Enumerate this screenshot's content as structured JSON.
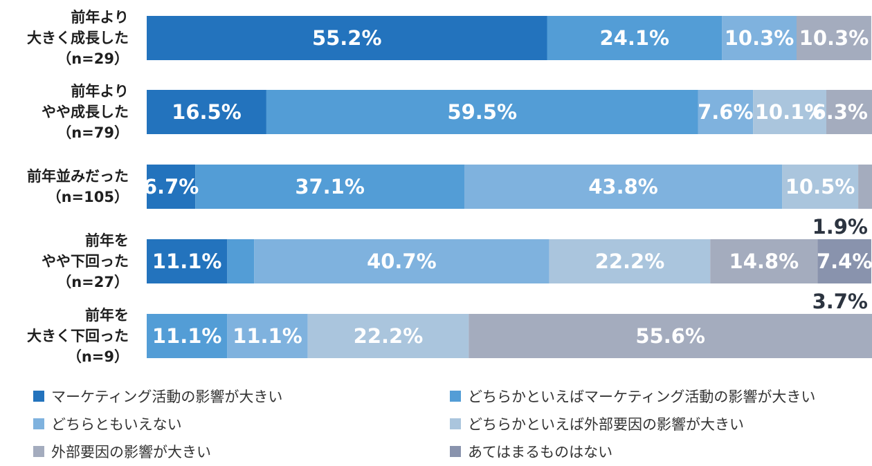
{
  "chart_data": {
    "type": "bar",
    "orientation": "horizontal",
    "stacked": true,
    "title": "",
    "xlabel": "",
    "ylabel": "",
    "xlim": [
      0,
      100
    ],
    "categories": [
      {
        "lines": [
          "前年より",
          "大きく成長した",
          "（n=29）"
        ]
      },
      {
        "lines": [
          "前年より",
          "やや成長した",
          "（n=79）"
        ]
      },
      {
        "lines": [
          "前年並みだった",
          "（n=105）"
        ]
      },
      {
        "lines": [
          "前年を",
          "やや下回った",
          "（n=27）"
        ]
      },
      {
        "lines": [
          "前年を",
          "大きく下回った",
          "（n=9）"
        ]
      }
    ],
    "series": [
      {
        "name": "マーケティング活動の影響が大きい",
        "color": "#2373bd",
        "values": [
          55.2,
          16.5,
          6.7,
          11.1,
          0
        ],
        "labels": [
          "55.2%",
          "16.5%",
          "6.7%",
          "11.1%",
          ""
        ]
      },
      {
        "name": "どちらかといえばマーケティング活動の影響が大きい",
        "color": "#539dd6",
        "values": [
          24.1,
          59.5,
          37.1,
          3.7,
          11.1
        ],
        "labels": [
          "24.1%",
          "59.5%",
          "37.1%",
          "3.7%",
          "11.1%"
        ]
      },
      {
        "name": "どちらともいえない",
        "color": "#7fb2de",
        "values": [
          10.3,
          7.6,
          43.8,
          40.7,
          11.1
        ],
        "labels": [
          "10.3%",
          "7.6%",
          "43.8%",
          "40.7%",
          "11.1%"
        ]
      },
      {
        "name": "どちらかといえば外部要因の影響が大きい",
        "color": "#aac5dd",
        "values": [
          0,
          10.1,
          10.5,
          22.2,
          22.2
        ],
        "labels": [
          "",
          "10.1%",
          "10.5%",
          "22.2%",
          "22.2%"
        ]
      },
      {
        "name": "外部要因の影響が大きい",
        "color": "#a4acbe",
        "values": [
          10.3,
          6.3,
          1.9,
          14.8,
          55.6
        ],
        "labels": [
          "10.3%",
          "6.3%",
          "1.9%",
          "14.8%",
          "55.6%"
        ]
      },
      {
        "name": "あてはまるものはない",
        "color": "#8993ad",
        "values": [
          0,
          0,
          0,
          7.4,
          0
        ],
        "labels": [
          "",
          "",
          "",
          "7.4%",
          ""
        ]
      }
    ]
  }
}
